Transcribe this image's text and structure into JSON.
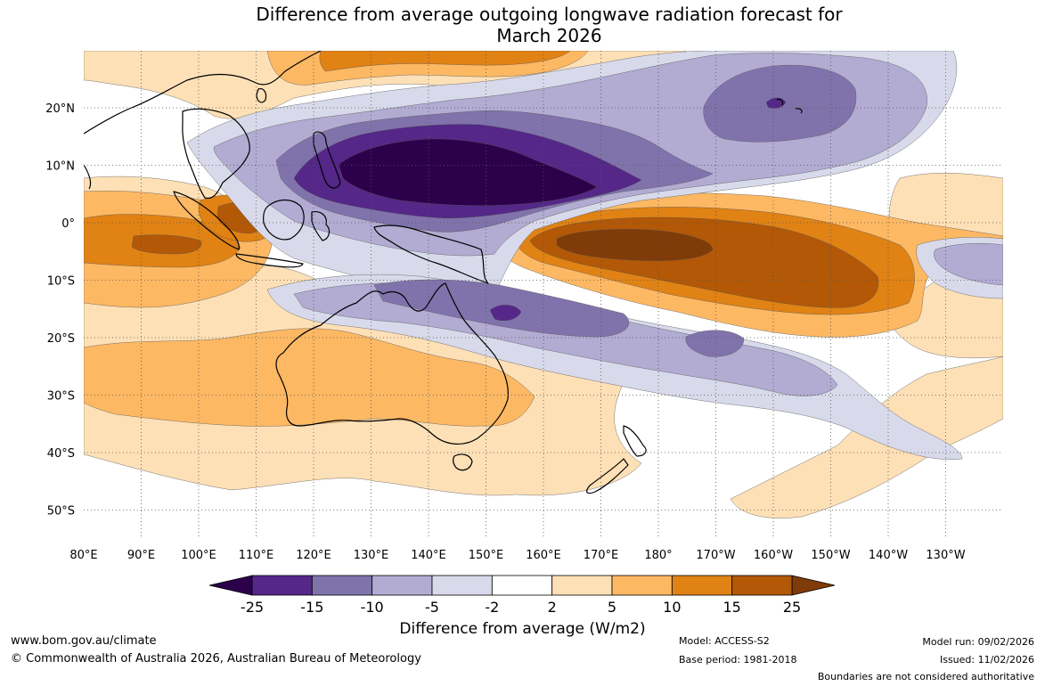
{
  "title": {
    "line1": "Difference from average outgoing longwave radiation forecast for",
    "line2": "March 2026"
  },
  "map": {
    "lon_ticks": [
      "80°E",
      "90°E",
      "100°E",
      "110°E",
      "120°E",
      "130°E",
      "140°E",
      "150°E",
      "160°E",
      "170°E",
      "180°",
      "170°W",
      "160°W",
      "150°W",
      "140°W",
      "130°W"
    ],
    "lat_ticks": [
      "20°N",
      "10°N",
      "0°",
      "10°S",
      "20°S",
      "30°S",
      "40°S",
      "50°S"
    ],
    "colors": {
      "neg25": "#2d004b",
      "neg15": "#542788",
      "neg10": "#8073ac",
      "neg5": "#b2abd2",
      "neg2": "#d8daeb",
      "zero": "#ffffff",
      "pos2": "#fee0b6",
      "pos5": "#fdb863",
      "pos10": "#e08214",
      "pos15": "#b35806",
      "pos25": "#7f3b08",
      "land_outline": "#000000",
      "grid": "#555555"
    }
  },
  "colorbar": {
    "ticks": [
      "-25",
      "-15",
      "-10",
      "-5",
      "-2",
      "2",
      "5",
      "10",
      "15",
      "25"
    ],
    "colors": [
      "#542788",
      "#8073ac",
      "#b2abd2",
      "#d8daeb",
      "#ffffff",
      "#fee0b6",
      "#fdb863",
      "#e08214",
      "#b35806"
    ],
    "under_color": "#2d004b",
    "over_color": "#7f3b08",
    "label": "Difference from average (W/m2)"
  },
  "footer": {
    "website": "www.bom.gov.au/climate",
    "copyright": "© Commonwealth of Australia 2026, Australian Bureau of Meteorology",
    "model": "Model: ACCESS-S2",
    "base_period": "Base period: 1981-2018",
    "model_run": "Model run: 09/02/2026",
    "issued": "Issued: 11/02/2026",
    "disclaimer": "Boundaries are not considered authoritative"
  }
}
